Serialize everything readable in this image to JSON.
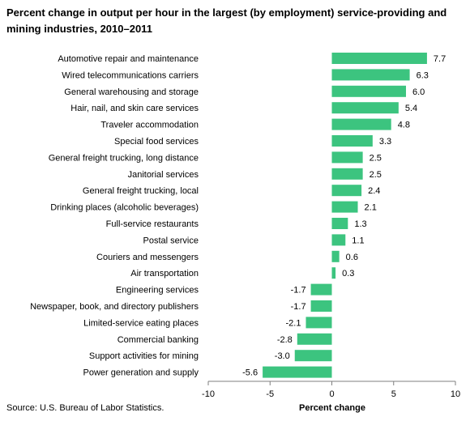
{
  "chart_data": {
    "type": "bar",
    "orientation": "horizontal",
    "title": "Percent change in output per hour in the largest (by employment) service-providing and mining industries, 2010–2011",
    "xlabel": "Percent change",
    "ylabel": "",
    "xlim": [
      -10,
      10
    ],
    "x_ticks": [
      -10,
      -5,
      0,
      5,
      10
    ],
    "bar_color": "#3cc47f",
    "grid": false,
    "categories": [
      "Automotive repair and maintenance",
      "Wired telecommunications carriers",
      "General warehousing and storage",
      "Hair, nail, and skin care services",
      "Traveler accommodation",
      "Special food services",
      "General freight trucking, long distance",
      "Janitorial services",
      "General freight trucking, local",
      "Drinking places (alcoholic beverages)",
      "Full-service restaurants",
      "Postal service",
      "Couriers and messengers",
      "Air transportation",
      "Engineering services",
      "Newspaper, book, and directory publishers",
      "Limited-service eating places",
      "Commercial banking",
      "Support activities for mining",
      "Power generation and supply"
    ],
    "values": [
      7.7,
      6.3,
      6.0,
      5.4,
      4.8,
      3.3,
      2.5,
      2.5,
      2.4,
      2.1,
      1.3,
      1.1,
      0.6,
      0.3,
      -1.7,
      -1.7,
      -2.1,
      -2.8,
      -3.0,
      -5.6
    ],
    "value_labels": [
      "7.7",
      "6.3",
      "6.0",
      "5.4",
      "4.8",
      "3.3",
      "2.5",
      "2.5",
      "2.4",
      "2.1",
      "1.3",
      "1.1",
      "0.6",
      "0.3",
      "-1.7",
      "-1.7",
      "-2.1",
      "-2.8",
      "-3.0",
      "-5.6"
    ]
  },
  "source": "Source: U.S. Bureau of Labor Statistics."
}
